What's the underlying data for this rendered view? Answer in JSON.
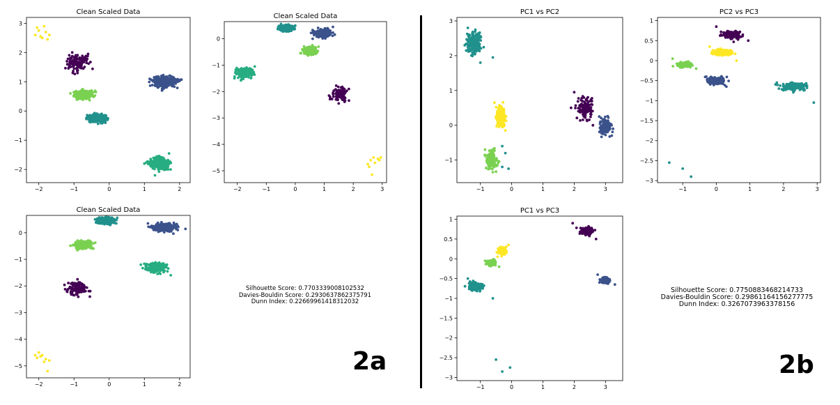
{
  "chart_data": [
    {
      "type": "scatter",
      "title": "Clean Scaled Data",
      "xlabel": "",
      "ylabel": "",
      "xlim": [
        -2.35,
        2.3
      ],
      "ylim": [
        -2.45,
        3.2
      ],
      "xticks": [
        -2,
        -1,
        0,
        1,
        2
      ],
      "yticks": [
        -2,
        -1,
        0,
        1,
        2,
        3
      ],
      "series": [
        {
          "color": "#440154",
          "center": [
            -0.9,
            1.65
          ],
          "spread": [
            0.25,
            0.25
          ],
          "count": 120,
          "points": [
            [
              -1.05,
              2.0
            ],
            [
              -0.6,
              1.95
            ],
            [
              -0.9,
              1.3
            ],
            [
              -1.2,
              1.7
            ]
          ]
        },
        {
          "color": "#3b528b",
          "center": [
            1.55,
            1.0
          ],
          "spread": [
            0.28,
            0.15
          ],
          "count": 380,
          "points": [
            [
              1.15,
              1.1
            ],
            [
              1.95,
              1.0
            ],
            [
              1.5,
              0.7
            ]
          ]
        },
        {
          "color": "#21918c",
          "center": [
            -0.35,
            -0.25
          ],
          "spread": [
            0.22,
            0.12
          ],
          "count": 380,
          "points": [
            [
              -0.65,
              -0.25
            ],
            [
              -0.05,
              -0.3
            ]
          ]
        },
        {
          "color": "#27ad81",
          "center": [
            1.4,
            -1.8
          ],
          "spread": [
            0.25,
            0.18
          ],
          "count": 260,
          "points": [
            [
              1.0,
              -1.8
            ],
            [
              1.7,
              -1.45
            ],
            [
              1.3,
              -2.2
            ]
          ]
        },
        {
          "color": "#7ad151",
          "center": [
            -0.75,
            0.55
          ],
          "spread": [
            0.2,
            0.12
          ],
          "count": 340,
          "points": [
            [
              -1.0,
              0.5
            ],
            [
              -0.5,
              0.7
            ]
          ]
        },
        {
          "color": "#fde725",
          "center": [
            -1.9,
            2.65
          ],
          "spread": [
            0.12,
            0.15
          ],
          "count": 9,
          "points": [
            [
              -2.0,
              2.75
            ],
            [
              -1.85,
              2.9
            ],
            [
              -1.75,
              2.45
            ],
            [
              -2.1,
              2.6
            ],
            [
              -1.7,
              2.6
            ],
            [
              -1.95,
              2.55
            ],
            [
              -1.8,
              2.7
            ],
            [
              -2.05,
              2.85
            ],
            [
              -1.9,
              2.5
            ]
          ]
        }
      ]
    },
    {
      "type": "scatter",
      "title": "Clean Scaled Data",
      "xlabel": "",
      "ylabel": "",
      "xlim": [
        -2.45,
        3.15
      ],
      "ylim": [
        -5.45,
        0.65
      ],
      "xticks": [
        -2,
        -1,
        0,
        1,
        2,
        3
      ],
      "yticks": [
        -5,
        -4,
        -3,
        -2,
        -1,
        0
      ],
      "series": [
        {
          "color": "#440154",
          "center": [
            1.55,
            -2.1
          ],
          "spread": [
            0.22,
            0.2
          ],
          "count": 120,
          "points": [
            [
              1.2,
              -2.2
            ],
            [
              1.85,
              -1.9
            ],
            [
              1.5,
              -2.45
            ]
          ]
        },
        {
          "color": "#3b528b",
          "center": [
            0.95,
            0.2
          ],
          "spread": [
            0.22,
            0.12
          ],
          "count": 360,
          "points": [
            [
              0.6,
              0.0
            ],
            [
              1.3,
              0.45
            ]
          ]
        },
        {
          "color": "#21918c",
          "center": [
            -0.3,
            0.4
          ],
          "spread": [
            0.18,
            0.1
          ],
          "count": 360,
          "points": [
            [
              -0.55,
              0.35
            ],
            [
              0.0,
              0.5
            ]
          ]
        },
        {
          "color": "#27ad81",
          "center": [
            -1.75,
            -1.3
          ],
          "spread": [
            0.25,
            0.15
          ],
          "count": 240,
          "points": [
            [
              -2.1,
              -1.5
            ],
            [
              -1.4,
              -1.05
            ]
          ]
        },
        {
          "color": "#7ad151",
          "center": [
            0.5,
            -0.45
          ],
          "spread": [
            0.18,
            0.12
          ],
          "count": 320,
          "points": [
            [
              0.2,
              -0.55
            ],
            [
              0.8,
              -0.3
            ]
          ]
        },
        {
          "color": "#fde725",
          "center": [
            2.7,
            -4.75
          ],
          "spread": [
            0.15,
            0.2
          ],
          "count": 9,
          "points": [
            [
              2.5,
              -4.75
            ],
            [
              2.6,
              -4.6
            ],
            [
              2.7,
              -4.5
            ],
            [
              2.85,
              -4.55
            ],
            [
              2.9,
              -4.6
            ],
            [
              2.65,
              -5.15
            ],
            [
              2.55,
              -4.85
            ],
            [
              2.75,
              -4.7
            ],
            [
              2.95,
              -4.5
            ]
          ]
        }
      ]
    },
    {
      "type": "scatter",
      "title": "Clean Scaled Data",
      "xlabel": "",
      "ylabel": "",
      "xlim": [
        -2.35,
        2.3
      ],
      "ylim": [
        -5.45,
        0.65
      ],
      "xticks": [
        -2,
        -1,
        0,
        1,
        2
      ],
      "yticks": [
        -5,
        -4,
        -3,
        -2,
        -1,
        0
      ],
      "series": [
        {
          "color": "#440154",
          "center": [
            -0.9,
            -2.1
          ],
          "spread": [
            0.25,
            0.2
          ],
          "count": 120,
          "points": [
            [
              -1.2,
              -2.2
            ],
            [
              -0.55,
              -2.4
            ],
            [
              -0.9,
              -1.75
            ]
          ]
        },
        {
          "color": "#3b528b",
          "center": [
            1.55,
            0.2
          ],
          "spread": [
            0.28,
            0.12
          ],
          "count": 380,
          "points": [
            [
              1.1,
              0.35
            ],
            [
              1.95,
              0.1
            ]
          ]
        },
        {
          "color": "#21918c",
          "center": [
            -0.1,
            0.45
          ],
          "spread": [
            0.2,
            0.1
          ],
          "count": 380,
          "points": [
            [
              -0.4,
              0.5
            ],
            [
              0.2,
              0.35
            ]
          ]
        },
        {
          "color": "#27ad81",
          "center": [
            1.35,
            -1.3
          ],
          "spread": [
            0.25,
            0.15
          ],
          "count": 260,
          "points": [
            [
              0.9,
              -1.2
            ],
            [
              1.75,
              -1.6
            ]
          ]
        },
        {
          "color": "#7ad151",
          "center": [
            -0.75,
            -0.45
          ],
          "spread": [
            0.2,
            0.12
          ],
          "count": 340,
          "points": [
            [
              -1.0,
              -0.45
            ],
            [
              -0.45,
              -0.6
            ]
          ]
        },
        {
          "color": "#fde725",
          "center": [
            -1.95,
            -4.75
          ],
          "spread": [
            0.12,
            0.15
          ],
          "count": 9,
          "points": [
            [
              -2.1,
              -4.6
            ],
            [
              -2.0,
              -4.5
            ],
            [
              -1.9,
              -4.6
            ],
            [
              -1.8,
              -4.75
            ],
            [
              -1.75,
              -5.2
            ],
            [
              -2.05,
              -4.7
            ],
            [
              -1.85,
              -4.85
            ],
            [
              -1.95,
              -4.65
            ],
            [
              -1.7,
              -4.8
            ]
          ]
        }
      ]
    },
    {
      "type": "scatter",
      "title": "PC1 vs PC2",
      "xlabel": "",
      "ylabel": "",
      "xlim": [
        -1.75,
        3.55
      ],
      "ylim": [
        -1.65,
        3.1
      ],
      "xticks": [
        -1,
        0,
        1,
        2,
        3
      ],
      "yticks": [
        -1,
        0,
        1,
        2,
        3
      ],
      "series": [
        {
          "color": "#440154",
          "center": [
            2.35,
            0.5
          ],
          "spread": [
            0.22,
            0.28
          ],
          "count": 120,
          "points": [
            [
              2.0,
              0.95
            ],
            [
              2.6,
              0.0
            ],
            [
              1.9,
              0.5
            ]
          ]
        },
        {
          "color": "#3b528b",
          "center": [
            3.0,
            -0.05
          ],
          "spread": [
            0.15,
            0.2
          ],
          "count": 170,
          "points": [
            [
              2.8,
              0.25
            ],
            [
              3.2,
              -0.3
            ]
          ]
        },
        {
          "color": "#21918c",
          "center": [
            -1.2,
            2.35
          ],
          "spread": [
            0.2,
            0.25
          ],
          "count": 230,
          "points": [
            [
              -1.4,
              2.8
            ],
            [
              -0.6,
              1.95
            ],
            [
              -1.0,
              1.8
            ],
            [
              -0.3,
              -1.2
            ],
            [
              -0.1,
              -1.25
            ],
            [
              -0.3,
              -0.6
            ],
            [
              -0.2,
              -0.8
            ]
          ]
        },
        {
          "color": "#7ad151",
          "center": [
            -0.65,
            -1.0
          ],
          "spread": [
            0.15,
            0.22
          ],
          "count": 170,
          "points": [
            [
              -0.85,
              -0.7
            ],
            [
              -0.6,
              -1.35
            ]
          ]
        },
        {
          "color": "#fde725",
          "center": [
            -0.35,
            0.25
          ],
          "spread": [
            0.12,
            0.22
          ],
          "count": 280,
          "points": [
            [
              -0.55,
              0.65
            ],
            [
              -0.2,
              -0.15
            ]
          ]
        }
      ]
    },
    {
      "type": "scatter",
      "title": "PC2 vs PC3",
      "xlabel": "",
      "ylabel": "",
      "xlim": [
        -1.75,
        3.1
      ],
      "ylim": [
        -3.05,
        1.08
      ],
      "xticks": [
        -1,
        0,
        1,
        2,
        3
      ],
      "yticks": [
        -3.0,
        -2.5,
        -2.0,
        -1.5,
        -1.0,
        -0.5,
        0.0,
        0.5,
        1.0
      ],
      "series": [
        {
          "color": "#440154",
          "center": [
            0.45,
            0.65
          ],
          "spread": [
            0.28,
            0.08
          ],
          "count": 130,
          "points": [
            [
              0.0,
              0.85
            ],
            [
              0.95,
              0.5
            ]
          ]
        },
        {
          "color": "#3b528b",
          "center": [
            0.0,
            -0.5
          ],
          "spread": [
            0.22,
            0.08
          ],
          "count": 180,
          "points": [
            [
              -0.3,
              -0.4
            ],
            [
              0.3,
              -0.65
            ]
          ]
        },
        {
          "color": "#21918c",
          "center": [
            2.3,
            -0.65
          ],
          "spread": [
            0.3,
            0.08
          ],
          "count": 220,
          "points": [
            [
              1.8,
              -0.55
            ],
            [
              2.9,
              -1.05
            ],
            [
              -1.4,
              -2.55
            ],
            [
              -0.75,
              -2.9
            ],
            [
              -1.0,
              -2.7
            ]
          ]
        },
        {
          "color": "#7ad151",
          "center": [
            -0.95,
            -0.1
          ],
          "spread": [
            0.2,
            0.06
          ],
          "count": 200,
          "points": [
            [
              -1.3,
              0.05
            ],
            [
              -0.6,
              -0.2
            ]
          ]
        },
        {
          "color": "#fde725",
          "center": [
            0.2,
            0.2
          ],
          "spread": [
            0.22,
            0.06
          ],
          "count": 300,
          "points": [
            [
              -0.2,
              0.35
            ],
            [
              0.6,
              0.0
            ]
          ]
        }
      ]
    },
    {
      "type": "scatter",
      "title": "PC1 vs PC3",
      "xlabel": "",
      "ylabel": "",
      "xlim": [
        -1.75,
        3.55
      ],
      "ylim": [
        -3.08,
        1.08
      ],
      "xticks": [
        -1,
        0,
        1,
        2,
        3
      ],
      "yticks": [
        -3.0,
        -2.5,
        -2.0,
        -1.5,
        -1.0,
        -0.5,
        0.0,
        0.5,
        1.0
      ],
      "series": [
        {
          "color": "#440154",
          "center": [
            2.4,
            0.7
          ],
          "spread": [
            0.18,
            0.08
          ],
          "count": 120,
          "points": [
            [
              1.95,
              0.9
            ],
            [
              2.7,
              0.5
            ]
          ]
        },
        {
          "color": "#3b528b",
          "center": [
            3.0,
            -0.55
          ],
          "spread": [
            0.12,
            0.06
          ],
          "count": 160,
          "points": [
            [
              2.75,
              -0.4
            ],
            [
              3.3,
              -0.65
            ]
          ]
        },
        {
          "color": "#21918c",
          "center": [
            -1.15,
            -0.7
          ],
          "spread": [
            0.2,
            0.08
          ],
          "count": 200,
          "points": [
            [
              -1.4,
              -0.5
            ],
            [
              -0.6,
              -1.0
            ],
            [
              -0.5,
              -2.55
            ],
            [
              -0.05,
              -2.75
            ],
            [
              -0.3,
              -2.85
            ]
          ]
        },
        {
          "color": "#7ad151",
          "center": [
            -0.65,
            -0.1
          ],
          "spread": [
            0.12,
            0.06
          ],
          "count": 170,
          "points": [
            [
              -0.85,
              -0.05
            ],
            [
              -0.4,
              -0.2
            ]
          ]
        },
        {
          "color": "#fde725",
          "center": [
            -0.3,
            0.2
          ],
          "spread": [
            0.1,
            0.07
          ],
          "count": 260,
          "points": [
            [
              -0.45,
              0.05
            ],
            [
              -0.1,
              0.35
            ]
          ]
        }
      ]
    }
  ],
  "metrics_2a": {
    "silhouette": "Silhouette Score: 0.7703339008102532",
    "davies_bouldin": "Davies-Bouldin Score: 0.2930637862375791",
    "dunn": "Dunn Index: 0.22669961418312032"
  },
  "metrics_2b": {
    "silhouette": "Silhouette Score: 0.7750883468214733",
    "davies_bouldin": "Davies-Bouldin Score: 0.29861164156277775",
    "dunn": "Dunn Index: 0.3267073963378156"
  },
  "panel_labels": {
    "a": "2a",
    "b": "2b"
  }
}
